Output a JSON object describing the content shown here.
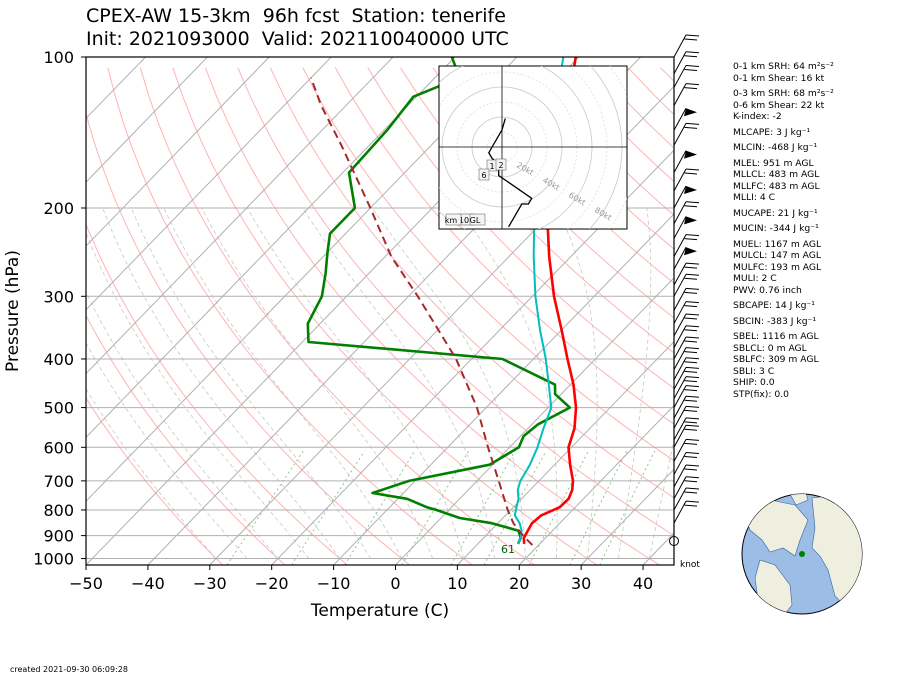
{
  "title": {
    "line1": "CPEX-AW 15-3km  96h fcst  Station: tenerife",
    "line2": "Init: 2021093000  Valid: 202110040000 UTC"
  },
  "stats": [
    {
      "text": "0-1 km SRH: 64 m²s⁻²",
      "gap": true
    },
    {
      "text": "0-1 km Shear: 16 kt",
      "gap": false
    },
    {
      "text": "0-3 km SRH: 68 m²s⁻²",
      "gap": true
    },
    {
      "text": "0-6 km Shear: 22 kt",
      "gap": false
    },
    {
      "text": "K-index: -2",
      "gap": false
    },
    {
      "text": "MLCAPE: 3 J kg⁻¹",
      "gap": true
    },
    {
      "text": "MLCIN: -468 J kg⁻¹",
      "gap": true
    },
    {
      "text": "MLEL: 951 m AGL",
      "gap": true
    },
    {
      "text": "MLLCL: 483 m AGL",
      "gap": false
    },
    {
      "text": "MLLFC: 483 m AGL",
      "gap": false
    },
    {
      "text": "MLLI: 4 C",
      "gap": false
    },
    {
      "text": "MUCAPE: 21 J kg⁻¹",
      "gap": true
    },
    {
      "text": "MUCIN: -344 J kg⁻¹",
      "gap": true
    },
    {
      "text": "MUEL: 1167 m AGL",
      "gap": true
    },
    {
      "text": "MULCL: 147 m AGL",
      "gap": false
    },
    {
      "text": "MULFC: 193 m AGL",
      "gap": false
    },
    {
      "text": "MULI: 2 C",
      "gap": false
    },
    {
      "text": "PWV: 0.76 inch",
      "gap": false
    },
    {
      "text": "SBCAPE: 14 J kg⁻¹",
      "gap": true
    },
    {
      "text": "SBCIN: -383 J kg⁻¹",
      "gap": true
    },
    {
      "text": "SBEL: 1116 m AGL",
      "gap": true
    },
    {
      "text": "SBLCL: 0 m AGL",
      "gap": false
    },
    {
      "text": "SBLFC: 309 m AGL",
      "gap": false
    },
    {
      "text": "SBLI: 3 C",
      "gap": false
    },
    {
      "text": "SHIP: 0.0",
      "gap": false
    },
    {
      "text": "STP(fix): 0.0",
      "gap": false
    }
  ],
  "created": "created 2021-09-30 06:09:28",
  "knot_label": "knot",
  "colors": {
    "temperature": "#ff0000",
    "dewpoint": "#008000",
    "wetbulb": "#00bfbf",
    "parcel": "#a52a2a",
    "isobar": "#b0b0b0",
    "isotherm": "#b0b0b0",
    "dry_adiabat": "#ffb3b3",
    "moist_adiabat": "#c8c8c8",
    "mixing_ratio": "#88cc88",
    "ocean": "#9cbde6",
    "land": "#efefdf",
    "station_marker": "#008000"
  },
  "chart_data": {
    "type": "line",
    "subtype": "skew-T log-P",
    "xlabel": "Temperature (C)",
    "ylabel": "Pressure (hPa)",
    "xlim": [
      -50,
      45
    ],
    "ylim": [
      1030,
      100
    ],
    "y_scale": "log",
    "xticks": [
      -50,
      -40,
      -30,
      -20,
      -10,
      0,
      10,
      20,
      30,
      40
    ],
    "yticks": [
      100,
      200,
      300,
      400,
      500,
      600,
      700,
      800,
      900,
      1000
    ],
    "x_tick_labels": [
      "−50",
      "−40",
      "−30",
      "−20",
      "−10",
      "0",
      "10",
      "20",
      "30",
      "40"
    ],
    "y_tick_labels": [
      "100",
      "200",
      "300",
      "400",
      "500",
      "600",
      "700",
      "800",
      "900",
      "1000"
    ],
    "annotation": "61",
    "series": [
      {
        "name": "temperature",
        "points": [
          [
            935,
            17.5
          ],
          [
            910,
            16.5
          ],
          [
            880,
            16.0
          ],
          [
            850,
            15.5
          ],
          [
            820,
            15.8
          ],
          [
            790,
            17.5
          ],
          [
            760,
            17.6
          ],
          [
            730,
            16.8
          ],
          [
            700,
            15.5
          ],
          [
            650,
            12.5
          ],
          [
            600,
            9.5
          ],
          [
            550,
            7.5
          ],
          [
            500,
            4.5
          ],
          [
            450,
            0.5
          ],
          [
            400,
            -4.5
          ],
          [
            350,
            -10.0
          ],
          [
            300,
            -16.5
          ],
          [
            250,
            -23.5
          ],
          [
            200,
            -31.5
          ],
          [
            170,
            -36.5
          ],
          [
            150,
            -40.0
          ],
          [
            130,
            -43.5
          ],
          [
            115,
            -46.5
          ],
          [
            100,
            -50.5
          ]
        ]
      },
      {
        "name": "dewpoint",
        "points": [
          [
            935,
            16.5
          ],
          [
            910,
            16.0
          ],
          [
            880,
            14.5
          ],
          [
            850,
            9.0
          ],
          [
            830,
            3.0
          ],
          [
            800,
            -2.0
          ],
          [
            790,
            -4.0
          ],
          [
            760,
            -8.5
          ],
          [
            740,
            -15.0
          ],
          [
            700,
            -11.0
          ],
          [
            650,
            -0.5
          ],
          [
            600,
            1.5
          ],
          [
            570,
            0.5
          ],
          [
            540,
            1.0
          ],
          [
            500,
            3.5
          ],
          [
            470,
            -1.0
          ],
          [
            450,
            -2.5
          ],
          [
            400,
            -15.0
          ],
          [
            370,
            -49.0
          ],
          [
            340,
            -52.0
          ],
          [
            300,
            -54.0
          ],
          [
            270,
            -57.0
          ],
          [
            245,
            -60.0
          ],
          [
            225,
            -62.5
          ],
          [
            200,
            -62.5
          ],
          [
            170,
            -69.0
          ],
          [
            140,
            -69.5
          ],
          [
            120,
            -70.5
          ],
          [
            110,
            -66.0
          ],
          [
            100,
            -70.5
          ]
        ]
      },
      {
        "name": "wetbulb",
        "points": [
          [
            935,
            16.5
          ],
          [
            910,
            16.0
          ],
          [
            880,
            15.0
          ],
          [
            850,
            13.5
          ],
          [
            820,
            11.5
          ],
          [
            790,
            10.5
          ],
          [
            760,
            9.5
          ],
          [
            730,
            8.0
          ],
          [
            700,
            7.0
          ],
          [
            650,
            6.0
          ],
          [
            600,
            4.5
          ],
          [
            550,
            2.5
          ],
          [
            500,
            0.5
          ],
          [
            450,
            -3.5
          ],
          [
            400,
            -8.0
          ],
          [
            350,
            -13.5
          ],
          [
            300,
            -19.5
          ],
          [
            250,
            -26.0
          ],
          [
            200,
            -33.5
          ],
          [
            170,
            -38.5
          ],
          [
            150,
            -42.5
          ],
          [
            130,
            -46.0
          ],
          [
            115,
            -48.5
          ],
          [
            100,
            -52.5
          ]
        ]
      },
      {
        "name": "parcel",
        "points": [
          [
            940,
            19.0
          ],
          [
            900,
            16.0
          ],
          [
            850,
            12.5
          ],
          [
            800,
            9.5
          ],
          [
            700,
            3.5
          ],
          [
            600,
            -3.5
          ],
          [
            500,
            -11.5
          ],
          [
            400,
            -22.5
          ],
          [
            300,
            -38.5
          ],
          [
            250,
            -49.0
          ],
          [
            200,
            -60.0
          ],
          [
            150,
            -74.5
          ],
          [
            125,
            -84.0
          ],
          [
            110,
            -90.0
          ]
        ]
      }
    ],
    "hodograph": {
      "range_labels": [
        "20kt",
        "40kt",
        "60kt",
        "80kt"
      ],
      "height_labels": [
        "1",
        "2",
        "6",
        "10",
        "km",
        "GL"
      ],
      "u_v_kt": [
        [
          2,
          -14
        ],
        [
          6,
          -10
        ],
        [
          8,
          -10
        ],
        [
          9,
          -9
        ],
        [
          -1,
          -5
        ],
        [
          -1,
          -3
        ],
        [
          -3,
          -2
        ],
        [
          -4,
          -1
        ],
        [
          -1,
          2
        ],
        [
          0,
          3
        ],
        [
          1,
          5
        ]
      ]
    }
  }
}
